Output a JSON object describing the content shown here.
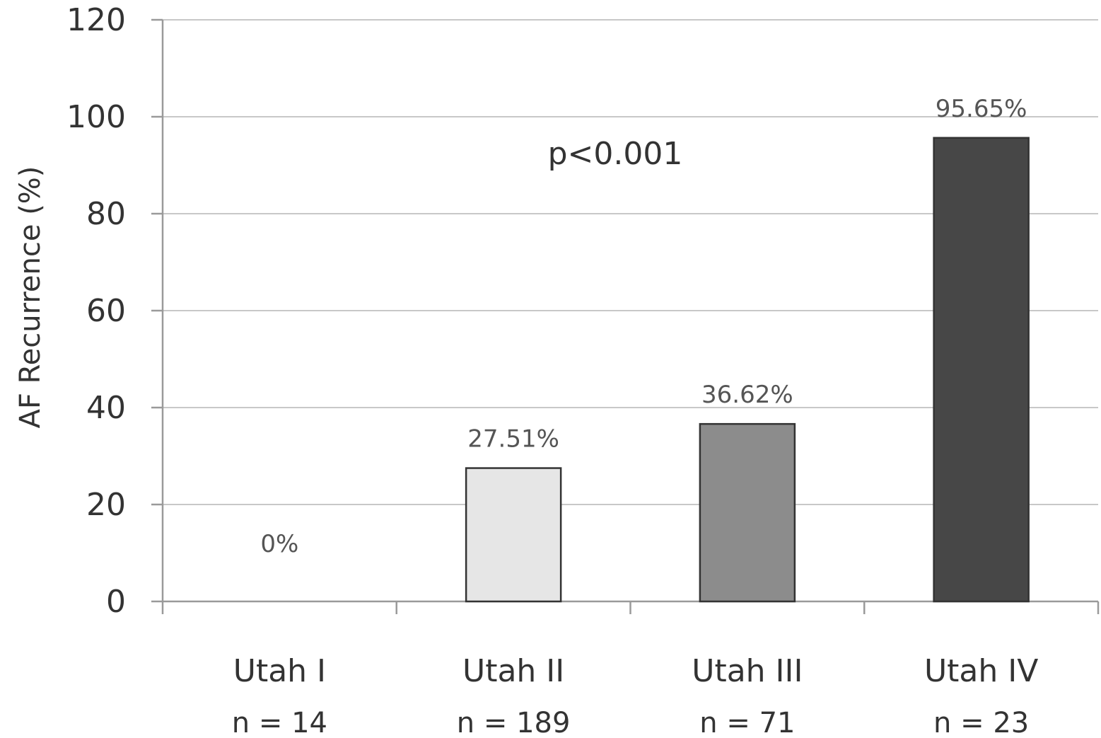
{
  "chart_data": {
    "type": "bar",
    "categories": [
      "Utah I",
      "Utah II",
      "Utah III",
      "Utah IV"
    ],
    "sample_sizes": [
      "n =  14",
      "n =  189",
      "n =  71",
      "n =  23"
    ],
    "values": [
      0,
      27.51,
      36.62,
      95.65
    ],
    "data_labels": [
      "0%",
      "27.51%",
      "36.62%",
      "95.65%"
    ],
    "bar_colors": [
      "#ffffff",
      "#e6e6e6",
      "#8c8c8c",
      "#474747"
    ],
    "ylabel": "AF Recurrence (%)",
    "ylim": [
      0,
      120
    ],
    "yticks": [
      0,
      20,
      40,
      60,
      80,
      100,
      120
    ],
    "annotation": "p<0.001",
    "grid": true,
    "legend": "none"
  }
}
